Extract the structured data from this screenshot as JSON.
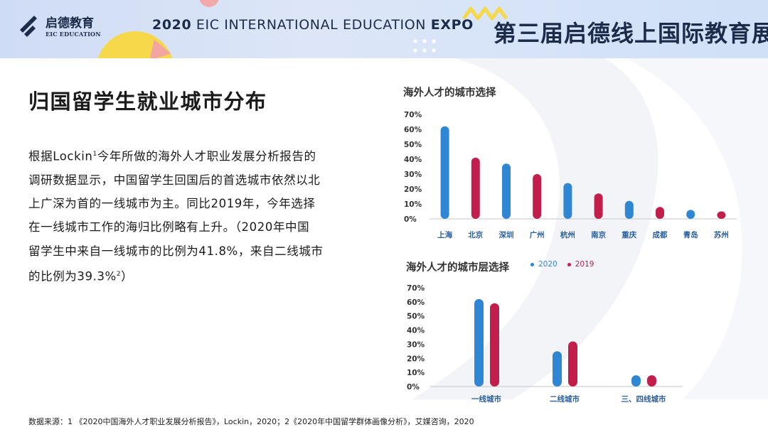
{
  "header": {
    "logo_cn": "启德教育",
    "logo_en": "EIC EDUCATION",
    "expo_year": "2020",
    "expo_mid": "EIC INTERNATIONAL EDUCATION",
    "expo_end": "EXPO",
    "expo_cn": "第三届启德线上国际教育展"
  },
  "main": {
    "title": "归国留学生就业城市分布",
    "body_lines": [
      "根据Lockin",
      "1",
      "今年所做的海外人才职业发展分析报告的",
      "调研数据显示，中国留学生回国后的首选城市依然以北",
      "上广深为首的一线城市为主。同比2019年，今年选择",
      "在一线城市工作的海归比例略有上升。（2020年中国",
      "留学生中来自一线城市的比例为41.8%，来自二线城市",
      "的比例为39.3%",
      "2",
      "）"
    ]
  },
  "colors": {
    "blue": "#2f86d3",
    "red": "#c21e4c",
    "axis": "#d0d0d0"
  },
  "chart_data": [
    {
      "type": "bar",
      "title": "海外人才的城市选择",
      "categories": [
        "上海",
        "北京",
        "深圳",
        "广州",
        "杭州",
        "南京",
        "重庆",
        "成都",
        "青岛",
        "苏州"
      ],
      "values": [
        62,
        41,
        37,
        30,
        24,
        17,
        12,
        8,
        6,
        5
      ],
      "bar_colors": [
        "#2f86d3",
        "#c21e4c",
        "#2f86d3",
        "#c21e4c",
        "#2f86d3",
        "#c21e4c",
        "#2f86d3",
        "#c21e4c",
        "#2f86d3",
        "#c21e4c"
      ],
      "yticks": [
        "0%",
        "10%",
        "20%",
        "30%",
        "40%",
        "50%",
        "60%",
        "70%"
      ],
      "ylim": [
        0,
        70
      ],
      "grid": false
    },
    {
      "type": "bar",
      "title": "海外人才的城市层选择",
      "categories": [
        "一线城市",
        "二线城市",
        "三、四线城市"
      ],
      "series": [
        {
          "name": "2020",
          "color": "#2f86d3",
          "values": [
            62,
            25,
            8
          ]
        },
        {
          "name": "2019",
          "color": "#c21e4c",
          "values": [
            59,
            32,
            8
          ]
        }
      ],
      "yticks": [
        "0%",
        "10%",
        "20%",
        "30%",
        "40%",
        "50%",
        "60%",
        "70%"
      ],
      "ylim": [
        0,
        70
      ],
      "legend": "top-right",
      "grid": false
    }
  ],
  "footer": {
    "source": "数据来源：1 《2020中国海外人才职业发展分析报告》，Lockin，2020；2《2020年中国留学群体画像分析》，艾媒咨询，2020"
  }
}
